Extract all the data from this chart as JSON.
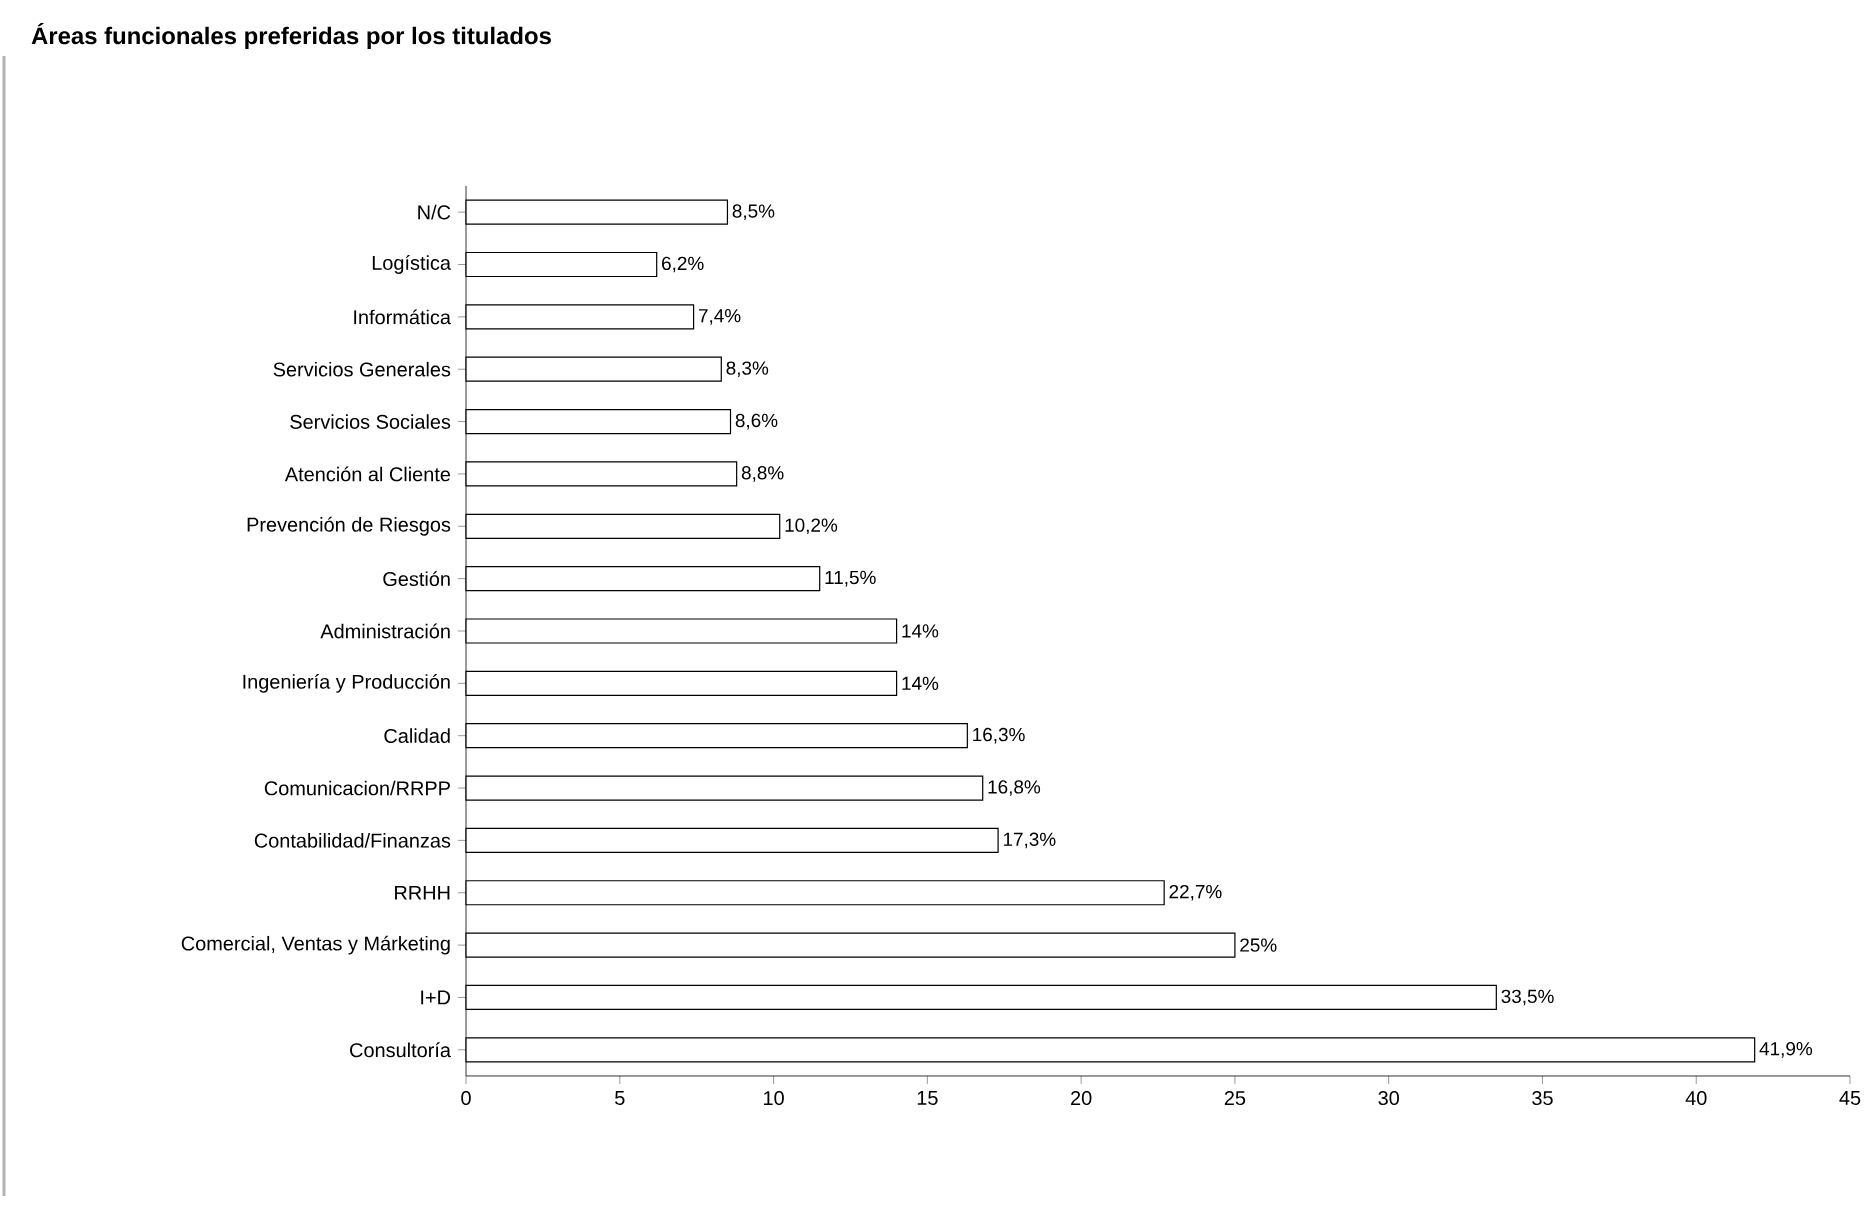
{
  "chart_data": {
    "type": "bar",
    "orientation": "horizontal",
    "title": "Áreas funcionales preferidas por los titulados",
    "categories": [
      "N/C",
      "Logística",
      "Informática",
      "Servicios Generales",
      "Servicios Sociales",
      "Atención al Cliente",
      "Prevención de Riesgos",
      "Gestión",
      "Administración",
      "Ingeniería y Producción",
      "Calidad",
      "Comunicacion/RRPP",
      "Contabilidad/Finanzas",
      "RRHH",
      "Comercial, Ventas y Márketing",
      "I+D",
      "Consultoría"
    ],
    "values": [
      8.5,
      6.2,
      7.4,
      8.3,
      8.6,
      8.8,
      10.2,
      11.5,
      14,
      14,
      16.3,
      16.8,
      17.3,
      22.7,
      25,
      33.5,
      41.9
    ],
    "value_labels": [
      "8,5%",
      "6,2%",
      "7,4%",
      "8,3%",
      "8,6%",
      "8,8%",
      "10,2%",
      "11,5%",
      "14%",
      "14%",
      "16,3%",
      "16,8%",
      "17,3%",
      "22,7%",
      "25%",
      "33,5%",
      "41,9%"
    ],
    "color": "#ffffff",
    "xlim": [
      0,
      45
    ],
    "xticks": [
      0,
      5,
      10,
      15,
      20,
      25,
      30,
      35,
      40,
      45
    ]
  }
}
